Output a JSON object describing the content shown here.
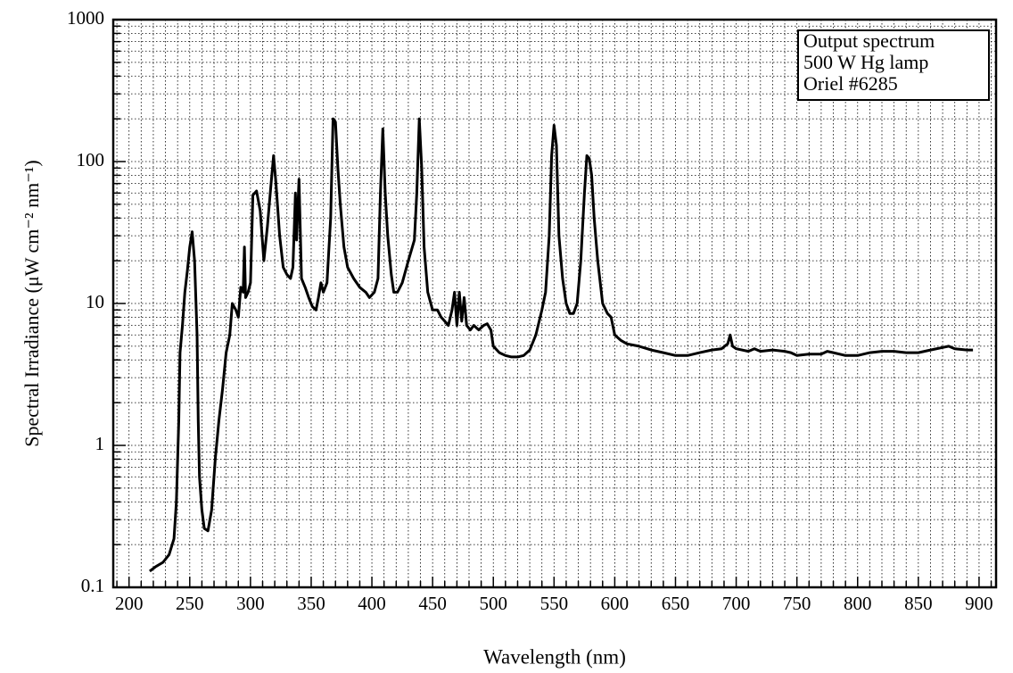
{
  "chart_data": {
    "type": "line",
    "xlabel": "Wavelength (nm)",
    "ylabel": "Spectral Irradiance (μW cm⁻² nm⁻¹)",
    "annotations": [
      "Output spectrum",
      "500 W Hg lamp",
      "Oriel #6285"
    ],
    "color": "#000000",
    "log_y": true,
    "grid": true,
    "minor_grid": true,
    "legend_position": "upper right",
    "xlim": [
      187,
      914
    ],
    "ylim": [
      0.1,
      1000
    ],
    "xticks": [
      200,
      250,
      300,
      350,
      400,
      450,
      500,
      550,
      600,
      650,
      700,
      750,
      800,
      850,
      900
    ],
    "yticks": [
      0.1,
      1,
      10,
      100,
      1000
    ],
    "x": [
      217,
      222,
      228,
      233,
      237,
      239,
      241,
      242,
      244,
      246,
      248,
      250,
      252,
      254,
      256,
      257,
      258,
      260,
      262,
      265,
      268,
      271,
      274,
      277,
      280,
      283,
      285,
      288,
      290,
      292,
      294,
      295,
      296,
      298,
      300,
      302,
      305,
      308,
      311,
      314,
      317,
      319,
      321,
      324,
      327,
      330,
      333,
      335,
      337,
      338,
      340,
      342,
      345,
      348,
      351,
      354,
      356,
      358,
      360,
      363,
      366,
      368,
      370,
      372,
      374,
      377,
      380,
      385,
      390,
      395,
      398,
      402,
      405,
      407,
      409,
      411,
      413,
      416,
      418,
      421,
      425,
      430,
      435,
      437,
      439,
      441,
      443,
      446,
      450,
      454,
      457,
      460,
      463,
      466,
      468,
      470,
      472,
      474,
      476,
      478,
      481,
      484,
      488,
      492,
      495,
      498,
      500,
      505,
      510,
      515,
      520,
      525,
      530,
      535,
      540,
      543,
      546,
      548,
      550,
      552,
      554,
      557,
      560,
      563,
      566,
      569,
      572,
      575,
      577,
      579,
      581,
      583,
      586,
      590,
      594,
      597,
      600,
      605,
      610,
      620,
      630,
      640,
      650,
      660,
      670,
      680,
      688,
      693,
      695,
      697,
      700,
      710,
      715,
      720,
      730,
      740,
      745,
      750,
      760,
      770,
      775,
      780,
      790,
      800,
      810,
      820,
      830,
      840,
      850,
      860,
      870,
      875,
      880,
      890,
      895
    ],
    "values": [
      0.13,
      0.14,
      0.15,
      0.17,
      0.22,
      0.4,
      1.5,
      4.5,
      7,
      12,
      17,
      25,
      32,
      20,
      6,
      1.5,
      0.6,
      0.35,
      0.26,
      0.25,
      0.35,
      0.8,
      1.5,
      2.5,
      4.5,
      6,
      10,
      9,
      8,
      13,
      12,
      25,
      11,
      12,
      14,
      58,
      62,
      45,
      20,
      35,
      70,
      110,
      70,
      30,
      18,
      16,
      15,
      18,
      60,
      28,
      75,
      15,
      13,
      11,
      9.5,
      9,
      11,
      14,
      12,
      14,
      40,
      200,
      190,
      90,
      50,
      25,
      18,
      15,
      13,
      12,
      11,
      12,
      15,
      60,
      170,
      60,
      30,
      16,
      12,
      12,
      14,
      20,
      28,
      60,
      200,
      90,
      25,
      12,
      9,
      9,
      8,
      7.5,
      7,
      9,
      12,
      7,
      12,
      7.5,
      11,
      7,
      6.5,
      7,
      6.5,
      7,
      7.2,
      6.5,
      5,
      4.5,
      4.3,
      4.2,
      4.2,
      4.3,
      4.7,
      6,
      9,
      12,
      30,
      110,
      180,
      130,
      30,
      15,
      10,
      8.5,
      8.5,
      10,
      20,
      60,
      110,
      105,
      80,
      40,
      20,
      10,
      8.5,
      8,
      6,
      5.5,
      5.2,
      5,
      4.7,
      4.5,
      4.3,
      4.3,
      4.5,
      4.7,
      4.8,
      5.2,
      6,
      5,
      4.8,
      4.6,
      4.8,
      4.6,
      4.7,
      4.6,
      4.5,
      4.3,
      4.4,
      4.4,
      4.6,
      4.5,
      4.3,
      4.3,
      4.5,
      4.6,
      4.6,
      4.5,
      4.5,
      4.7,
      4.9,
      5,
      4.8,
      4.7,
      4.7
    ]
  }
}
